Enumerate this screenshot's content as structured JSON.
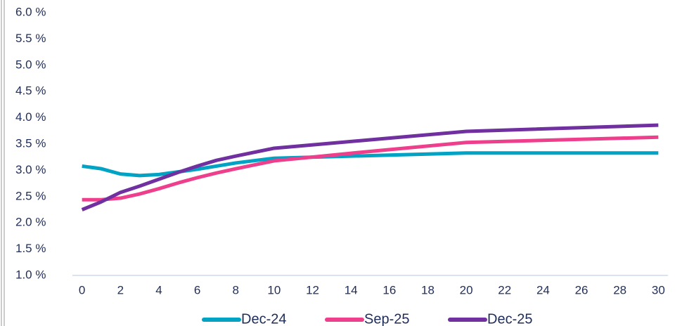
{
  "chart_data": {
    "type": "line",
    "x": [
      0,
      1,
      2,
      3,
      4,
      5,
      6,
      7,
      8,
      10,
      15,
      20,
      30
    ],
    "series": [
      {
        "name": "Dec-24",
        "color": "#00a3c4",
        "values": [
          3.08,
          3.03,
          2.93,
          2.9,
          2.92,
          2.97,
          3.02,
          3.08,
          3.14,
          3.23,
          3.28,
          3.33,
          3.33
        ]
      },
      {
        "name": "Sep-25",
        "color": "#ee3f8c",
        "values": [
          2.44,
          2.44,
          2.47,
          2.55,
          2.65,
          2.76,
          2.86,
          2.95,
          3.03,
          3.18,
          3.36,
          3.53,
          3.63
        ]
      },
      {
        "name": "Dec-25",
        "color": "#7030a0",
        "values": [
          2.25,
          2.4,
          2.58,
          2.7,
          2.83,
          2.96,
          3.08,
          3.19,
          3.27,
          3.42,
          3.58,
          3.74,
          3.86
        ]
      }
    ],
    "xlim": [
      -0.5,
      30.5
    ],
    "xticks": [
      0,
      2,
      4,
      6,
      8,
      10,
      12,
      14,
      16,
      18,
      20,
      22,
      24,
      26,
      28,
      30
    ],
    "ylim": [
      1,
      6
    ],
    "yticks": [
      {
        "value": 1,
        "label": "1.0 %"
      },
      {
        "value": 1.5,
        "label": "1.5 %"
      },
      {
        "value": 2,
        "label": "2.0 %"
      },
      {
        "value": 2.5,
        "label": "2.5 %"
      },
      {
        "value": 3,
        "label": "3.0 %"
      },
      {
        "value": 3.5,
        "label": "3.5 %"
      },
      {
        "value": 4,
        "label": "4.0 %"
      },
      {
        "value": 4.5,
        "label": "4.5 %"
      },
      {
        "value": 5,
        "label": "5.0 %"
      },
      {
        "value": 5.5,
        "label": "5.5 %"
      },
      {
        "value": 6,
        "label": "6.0 %"
      }
    ],
    "grid": false,
    "legend": "bottom"
  }
}
